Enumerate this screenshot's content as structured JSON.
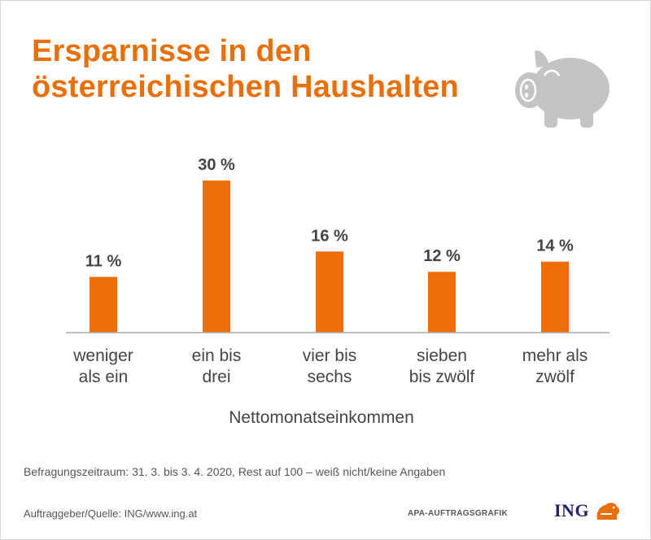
{
  "title_lines": [
    "Ersparnisse in den",
    "österreichischen Haushalten"
  ],
  "icons": {
    "piggy": "piggy-bank-icon",
    "logo_lion": "ing-lion-icon"
  },
  "colors": {
    "accent": "#e8700b",
    "bar": "#ee6f0a",
    "icon": "#c4c4c4",
    "text": "#444444",
    "brand": "#21245f"
  },
  "chart_data": {
    "type": "bar",
    "title": "Ersparnisse in den österreichischen Haushalten",
    "xlabel": "Nettomonatseinkommen",
    "ylabel": "",
    "ylim": [
      0,
      30
    ],
    "grid": false,
    "categories": [
      [
        "weniger",
        "als ein"
      ],
      [
        "ein bis",
        "drei"
      ],
      [
        "vier bis",
        "sechs"
      ],
      [
        "sieben",
        "bis zwölf"
      ],
      [
        "mehr als",
        "zwölf"
      ]
    ],
    "values": [
      11,
      30,
      16,
      12,
      14
    ],
    "value_labels": [
      "11 %",
      "30 %",
      "16 %",
      "12 %",
      "14 %"
    ]
  },
  "footer": {
    "note": "Befragungszeitraum: 31. 3. bis 3. 4. 2020, Rest auf 100 – weiß nicht/keine Angaben",
    "source": "Auftraggeber/Quelle: ING/www.ing.at",
    "apa": "APA-AUFTRAGSGRAFIK",
    "logo_text": "ING"
  }
}
